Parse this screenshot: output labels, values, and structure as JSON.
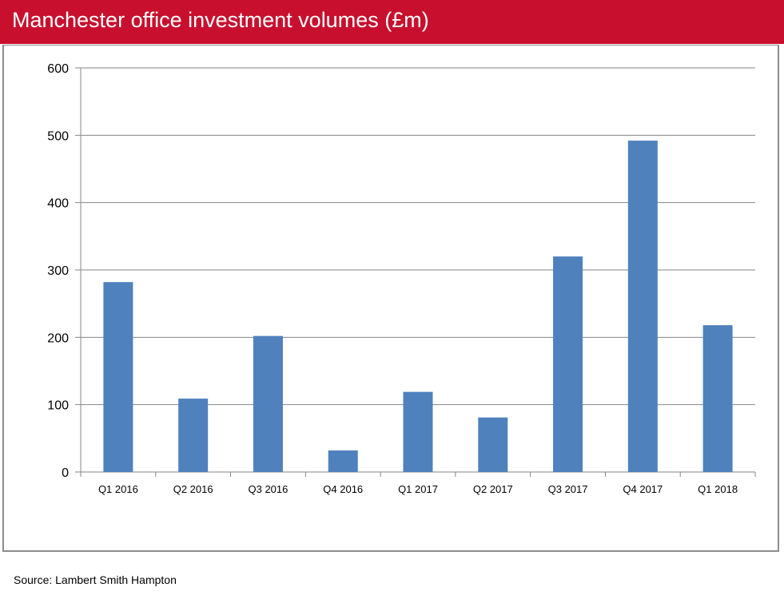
{
  "title": "Manchester office investment volumes (£m)",
  "source": "Source: Lambert Smith Hampton",
  "colors": {
    "header": "#c8102e",
    "bar": "#4f81bd",
    "grid": "#868686"
  },
  "chart_data": {
    "type": "bar",
    "title": "Manchester office investment volumes (£m)",
    "categories": [
      "Q1 2016",
      "Q2 2016",
      "Q3 2016",
      "Q4 2016",
      "Q1 2017",
      "Q2 2017",
      "Q3 2017",
      "Q4 2017",
      "Q1 2018"
    ],
    "values": [
      282,
      109,
      202,
      32,
      119,
      81,
      320,
      492,
      218
    ],
    "yticks": [
      0,
      100,
      200,
      300,
      400,
      500,
      600
    ],
    "ylim": [
      0,
      600
    ],
    "grid": true,
    "xlabel": "",
    "ylabel": ""
  }
}
